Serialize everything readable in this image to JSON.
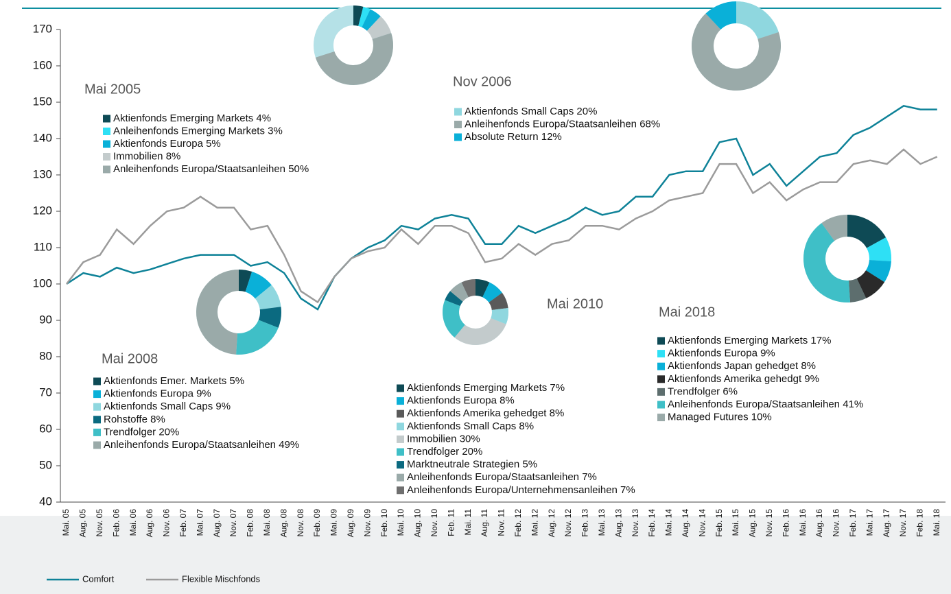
{
  "chart_data": [
    {
      "type": "line",
      "categories": [
        "Mai. 05",
        "Aug. 05",
        "Nov. 05",
        "Feb. 06",
        "Mai. 06",
        "Aug. 06",
        "Nov. 06",
        "Feb. 07",
        "Mai. 07",
        "Aug. 07",
        "Nov. 07",
        "Feb. 08",
        "Mai. 08",
        "Aug. 08",
        "Nov. 08",
        "Feb. 09",
        "Mai. 09",
        "Aug. 09",
        "Nov. 09",
        "Feb. 10",
        "Mai. 10",
        "Aug. 10",
        "Nov. 10",
        "Feb. 11",
        "Mai. 11",
        "Aug. 11",
        "Nov. 11",
        "Feb. 12",
        "Mai. 12",
        "Aug. 12",
        "Nov. 12",
        "Feb. 13",
        "Mai. 13",
        "Aug. 13",
        "Nov. 13",
        "Feb. 14",
        "Mai. 14",
        "Aug. 14",
        "Nov. 14",
        "Feb. 15",
        "Mai. 15",
        "Aug. 15",
        "Nov. 15",
        "Feb. 16",
        "Mai. 16",
        "Aug. 16",
        "Nov. 16",
        "Feb. 17",
        "Mai. 17",
        "Aug. 17",
        "Nov. 17",
        "Feb. 18",
        "Mai. 18"
      ],
      "series": [
        {
          "name": "Comfort",
          "color": "#0e8298",
          "values": [
            100,
            103,
            102,
            104.5,
            103,
            104,
            105.5,
            107,
            108,
            108,
            108,
            105,
            106,
            103,
            96,
            93,
            102,
            107,
            110,
            112,
            116,
            115,
            118,
            119,
            118,
            111,
            111,
            116,
            114,
            116,
            118,
            121,
            119,
            120,
            124,
            124,
            130,
            131,
            131,
            139,
            140,
            130,
            133,
            127,
            131,
            135,
            136,
            141,
            143,
            146,
            149,
            148,
            148
          ]
        },
        {
          "name": "Flexible Mischfonds",
          "color": "#9b9b9b",
          "values": [
            100,
            106,
            108,
            115,
            111,
            116,
            120,
            121,
            124,
            121,
            121,
            115,
            116,
            108,
            98,
            95,
            102,
            107,
            109,
            110,
            115,
            111,
            116,
            116,
            114,
            106,
            107,
            111,
            108,
            111,
            112,
            116,
            116,
            115,
            118,
            120,
            123,
            124,
            125,
            133,
            133,
            125,
            128,
            123,
            126,
            128,
            128,
            133,
            134,
            133,
            137,
            133,
            135
          ]
        }
      ],
      "ylim": [
        40,
        170
      ],
      "yticks": [
        40,
        50,
        60,
        70,
        80,
        90,
        100,
        110,
        120,
        130,
        140,
        150,
        160,
        170
      ]
    },
    {
      "type": "donut",
      "title": "Mai 2005",
      "labels": [
        "Aktienfonds Emerging Markets  4%",
        "Anleihenfonds Emerging Markets  3%",
        "Aktienfonds Europa  5%",
        "Immobilien 8%",
        "Anleihenfonds Europa/Staatsanleihen 50%"
      ],
      "values": [
        4,
        3,
        5,
        8,
        50
      ],
      "colors": [
        "#0e4a55",
        "#2ee0f5",
        "#0ab0d8",
        "#c3cbcc",
        "#9aaaa9"
      ]
    },
    {
      "type": "donut",
      "title": "Nov 2006",
      "labels": [
        "Aktienfonds Small Caps  20%",
        "Anleihenfonds Europa/Staatsanleihen  68%",
        "Absolute Return 12%"
      ],
      "values": [
        20,
        68,
        12
      ],
      "colors": [
        "#8fd7df",
        "#9aaaa9",
        "#0ab0d8"
      ]
    },
    {
      "type": "donut",
      "title": "Mai 2008",
      "labels": [
        "Aktienfonds Emer. Markets  5%",
        "Aktienfonds Europa  9%",
        "Aktienfonds Small Caps  9%",
        "Rohstoffe  8%",
        "Trendfolger  20%",
        "Anleihenfonds Europa/Staatsanleihen 49%"
      ],
      "values": [
        5,
        9,
        9,
        8,
        20,
        49
      ],
      "colors": [
        "#0e4a55",
        "#0ab0d8",
        "#8fd7df",
        "#0b6a80",
        "#3fbfc7",
        "#9aaaa9"
      ]
    },
    {
      "type": "donut",
      "title": "Mai 2010",
      "labels": [
        "Aktienfonds Emerging Markets  7%",
        "Aktienfonds Europa 8%",
        "Aktienfonds Amerika gehedget  8%",
        "Aktienfonds Small Caps  8%",
        "Immobilien  30%",
        "Trendfolger  20%",
        "Marktneutrale Strategien  5%",
        "Anleihenfonds Europa/Staatsanleihen 7%",
        "Anleihenfonds Europa/Unternehmensanleihen  7%"
      ],
      "values": [
        7,
        8,
        8,
        8,
        30,
        20,
        5,
        7,
        7
      ],
      "colors": [
        "#0e4a55",
        "#0ab0d8",
        "#5a5a5a",
        "#8fd7df",
        "#c3cbcc",
        "#3fbfc7",
        "#0b6a80",
        "#9aaaa9",
        "#6f6f6f"
      ]
    },
    {
      "type": "donut",
      "title": "Mai 2018",
      "labels": [
        "Aktienfonds Emerging Markets  17%",
        "Aktienfonds Europa 9%",
        "Aktienfonds Japan gehedget 8%",
        "Aktienfonds Amerika  gehedgt 9%",
        "Trendfolger  6%",
        "Anleihenfonds Europa/Staatsanleihen  41%",
        "Managed Futures  10%"
      ],
      "values": [
        17,
        9,
        8,
        9,
        6,
        41,
        10
      ],
      "colors": [
        "#0e4a55",
        "#2ee0f5",
        "#0ab0d8",
        "#2a2a2a",
        "#5d6e6e",
        "#3fbfc7",
        "#9aaaa9"
      ]
    }
  ]
}
